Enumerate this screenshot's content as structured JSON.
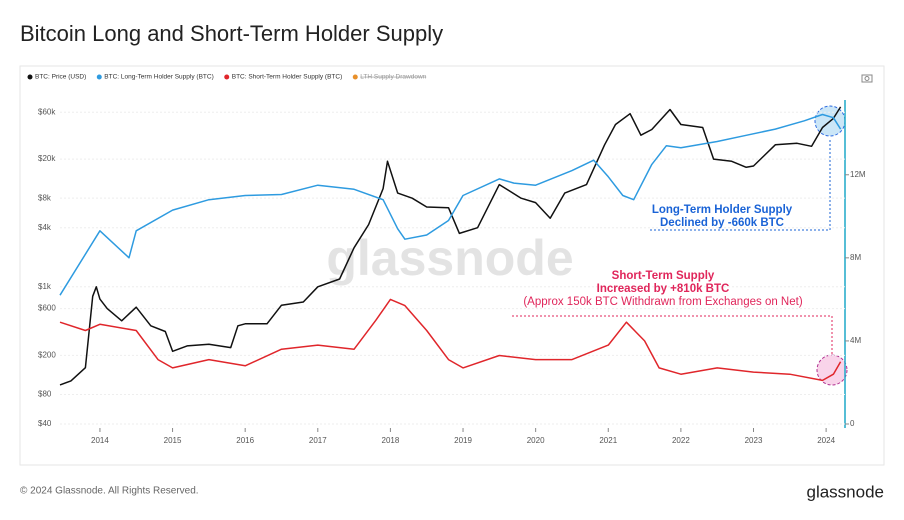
{
  "chart_data": {
    "type": "line",
    "title": "Bitcoin Long and Short-Term Holder Supply",
    "watermark": "glassnode",
    "xlim": [
      2013.45,
      2024.26
    ],
    "xticks": [
      2014,
      2015,
      2016,
      2017,
      2018,
      2019,
      2020,
      2021,
      2022,
      2023,
      2024
    ],
    "ylim": [
      40,
      80000
    ],
    "log_y": true,
    "yticks": [
      {
        "value": 40,
        "label": "$40"
      },
      {
        "value": 80,
        "label": "$80"
      },
      {
        "value": 200,
        "label": "$200"
      },
      {
        "value": 600,
        "label": "$600"
      },
      {
        "value": 1000,
        "label": "$1k"
      },
      {
        "value": 4000,
        "label": "$4k"
      },
      {
        "value": 8000,
        "label": "$8k"
      },
      {
        "value": 20000,
        "label": "$20k"
      },
      {
        "value": 60000,
        "label": "$60k"
      }
    ],
    "y2lim": [
      0,
      15600000
    ],
    "y2ticks": [
      0,
      {
        "value": 4000000,
        "label": "4M"
      },
      {
        "value": 8000000,
        "label": "8M"
      },
      {
        "value": 12000000,
        "label": "12M"
      }
    ],
    "series": [
      {
        "name": "BTC: Price (USD)",
        "color": "#111111",
        "x": [
          2013.45,
          2013.6,
          2013.8,
          2013.9,
          2013.95,
          2014.0,
          2014.1,
          2014.3,
          2014.5,
          2014.7,
          2014.9,
          2015.0,
          2015.2,
          2015.5,
          2015.8,
          2015.9,
          2016.0,
          2016.3,
          2016.5,
          2016.8,
          2017.0,
          2017.3,
          2017.5,
          2017.7,
          2017.9,
          2017.96,
          2018.1,
          2018.3,
          2018.5,
          2018.8,
          2018.95,
          2019.2,
          2019.5,
          2019.8,
          2020.0,
          2020.2,
          2020.4,
          2020.7,
          2020.95,
          2021.1,
          2021.3,
          2021.45,
          2021.6,
          2021.85,
          2022.0,
          2022.3,
          2022.45,
          2022.7,
          2022.9,
          2023.0,
          2023.3,
          2023.6,
          2023.8,
          2023.95,
          2024.1,
          2024.2
        ],
        "values": [
          100,
          110,
          150,
          800,
          1000,
          750,
          600,
          450,
          620,
          400,
          350,
          220,
          250,
          260,
          240,
          400,
          420,
          420,
          650,
          700,
          1000,
          1200,
          2500,
          4300,
          10000,
          19000,
          9000,
          8000,
          6500,
          6400,
          3500,
          4000,
          11000,
          8000,
          7200,
          5000,
          9000,
          11000,
          28000,
          45000,
          58000,
          35000,
          40000,
          64000,
          45000,
          42000,
          20000,
          19000,
          16500,
          17000,
          28000,
          29000,
          27000,
          42000,
          52000,
          68000
        ]
      },
      {
        "name": "BTC: Long-Term Holder Supply (BTC)",
        "color": "#2e9be0",
        "axis": "y2",
        "x": [
          2013.45,
          2014.0,
          2014.4,
          2014.5,
          2015.0,
          2015.5,
          2016.0,
          2016.5,
          2017.0,
          2017.5,
          2017.9,
          2018.1,
          2018.2,
          2018.5,
          2018.8,
          2019.0,
          2019.5,
          2019.7,
          2020.0,
          2020.5,
          2020.8,
          2021.0,
          2021.2,
          2021.35,
          2021.6,
          2021.8,
          2022.0,
          2022.5,
          2022.9,
          2023.3,
          2023.7,
          2023.95,
          2024.1,
          2024.2
        ],
        "values": [
          6200000,
          9300000,
          8000000,
          9300000,
          10300000,
          10800000,
          11000000,
          11050000,
          11500000,
          11300000,
          10800000,
          9400000,
          8900000,
          9100000,
          9800000,
          11000000,
          11800000,
          11600000,
          11500000,
          12200000,
          12700000,
          11900000,
          11000000,
          10800000,
          12500000,
          13400000,
          13300000,
          13600000,
          13900000,
          14200000,
          14600000,
          14900000,
          14750000,
          14200000
        ]
      },
      {
        "name": "BTC: Short-Term Holder Supply (BTC)",
        "color": "#e0262b",
        "axis": "y2",
        "x": [
          2013.45,
          2013.8,
          2014.0,
          2014.5,
          2014.8,
          2015.0,
          2015.5,
          2016.0,
          2016.5,
          2017.0,
          2017.5,
          2017.8,
          2018.0,
          2018.2,
          2018.5,
          2018.8,
          2019.0,
          2019.5,
          2020.0,
          2020.5,
          2021.0,
          2021.25,
          2021.5,
          2021.7,
          2022.0,
          2022.5,
          2023.0,
          2023.5,
          2023.95,
          2024.1,
          2024.2
        ],
        "values": [
          4900000,
          4500000,
          4800000,
          4500000,
          3100000,
          2700000,
          3100000,
          2800000,
          3600000,
          3800000,
          3600000,
          5000000,
          6000000,
          5700000,
          4500000,
          3100000,
          2700000,
          3300000,
          3100000,
          3100000,
          3800000,
          4900000,
          4000000,
          2700000,
          2400000,
          2700000,
          2500000,
          2400000,
          2100000,
          2400000,
          3000000
        ]
      }
    ],
    "disabled_legend": [
      {
        "name": "LTH Supply Drawdown",
        "color": "#e8902a"
      }
    ],
    "annotations": [
      {
        "color": "#1a63d6",
        "lines": [
          "Long-Term Holder Supply",
          "Declined by -660k BTC"
        ]
      },
      {
        "color": "#e0265b",
        "lines": [
          "Short-Term Supply",
          "Increased by +810k BTC",
          "(Approx 150k BTC Withdrawn from Exchanges on Net)"
        ]
      }
    ],
    "footer": "© 2024 Glassnode. All Rights Reserved.",
    "logo": "glassnode"
  }
}
